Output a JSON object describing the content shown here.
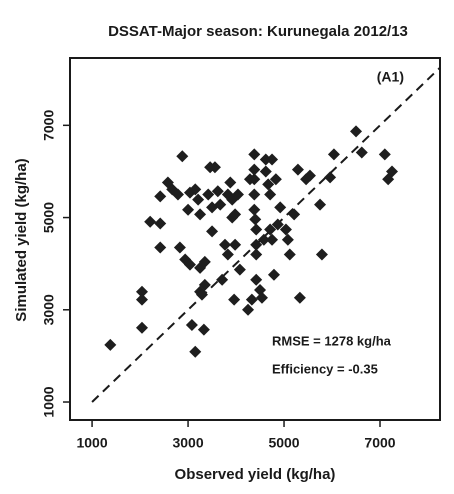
{
  "chart_data": {
    "type": "scatter",
    "title": "DSSAT-Major season: Kurunegala 2012/13",
    "x_label": "Observed yield (kg/ha)",
    "y_label": "Simulated yield (kg/ha)",
    "annotations": [
      "(A1)",
      "RMSE = 1278 kg/ha",
      "Efficiency = -0.35"
    ],
    "color": "#1e1e1e",
    "xlim": [
      540,
      8250
    ],
    "ylim": [
      610,
      8460
    ],
    "xticks": [
      1000,
      3000,
      5000,
      7000
    ],
    "yticks": [
      1000,
      3000,
      5000,
      7000
    ],
    "x": [
      1380,
      2210,
      2420,
      2420,
      2580,
      2670,
      2790,
      2880,
      2830,
      2940,
      3000,
      3040,
      3040,
      3080,
      3150,
      3150,
      3210,
      3250,
      3250,
      3250,
      3290,
      3350,
      3350,
      3420,
      3460,
      3500,
      3500,
      3560,
      3620,
      3670,
      3710,
      3770,
      3830,
      3830,
      3880,
      3920,
      3920,
      3960,
      3980,
      4040,
      4080,
      3980,
      4250,
      4290,
      4330,
      4380,
      4380,
      4380,
      4380,
      4380,
      4400,
      4420,
      4420,
      4420,
      4420,
      4500,
      4540,
      4580,
      4620,
      4620,
      4670,
      4710,
      4710,
      4750,
      4750,
      4790,
      4830,
      4870,
      4920,
      5040,
      5080,
      5120,
      5210,
      5330,
      5290,
      5460,
      5540,
      5750,
      5960,
      5790,
      6040,
      6500,
      6620,
      7100,
      7170,
      7250,
      2040,
      2040,
      2040,
      3330,
      2420
    ],
    "values": [
      2240,
      4910,
      4870,
      5460,
      5760,
      5610,
      5500,
      6330,
      4350,
      4090,
      5170,
      5540,
      3980,
      2670,
      2090,
      5610,
      5390,
      5070,
      3910,
      3390,
      3330,
      4040,
      3540,
      5500,
      6090,
      5220,
      4700,
      6090,
      5570,
      5280,
      3650,
      4410,
      5500,
      4200,
      5760,
      5390,
      5000,
      3220,
      5070,
      5500,
      3870,
      4410,
      3000,
      5830,
      3220,
      6370,
      6040,
      5830,
      5500,
      5170,
      4960,
      4740,
      4410,
      4200,
      3650,
      3430,
      3260,
      4520,
      6260,
      6000,
      5720,
      5500,
      4740,
      6260,
      4520,
      3760,
      5830,
      4850,
      5220,
      4740,
      4520,
      4200,
      5070,
      3260,
      6040,
      5830,
      5910,
      5280,
      5870,
      4200,
      6370,
      6870,
      6410,
      6370,
      5830,
      6000,
      3390,
      3220,
      2610,
      2570,
      4350
    ]
  }
}
